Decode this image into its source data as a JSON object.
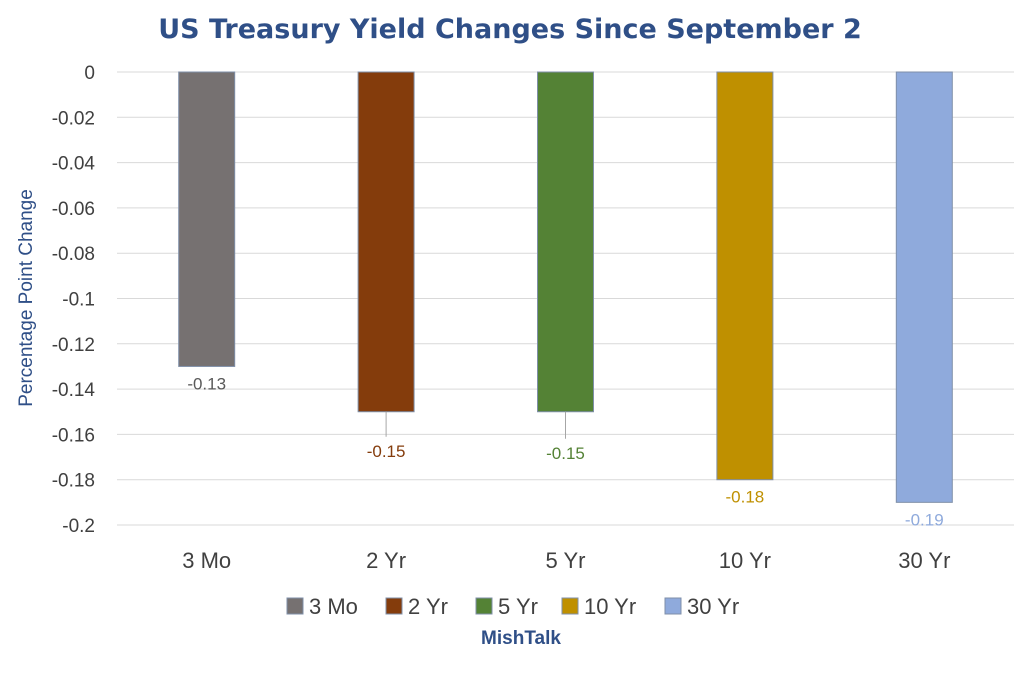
{
  "chart_data": {
    "type": "bar",
    "title": "US Treasury Yield Changes Since September 2",
    "xlabel": "",
    "ylabel": "Percentage Point Change",
    "categories": [
      "3 Mo",
      "2 Yr",
      "5 Yr",
      "10 Yr",
      "30 Yr"
    ],
    "values": [
      -0.13,
      -0.15,
      -0.15,
      -0.18,
      -0.19
    ],
    "data_labels": [
      "-0.13",
      "-0.15",
      "-0.15",
      "-0.18",
      "-0.19"
    ],
    "colors": [
      "#767171",
      "#843c0c",
      "#548235",
      "#bf9000",
      "#8faadc"
    ],
    "label_colors": [
      "#595959",
      "#843c0c",
      "#548235",
      "#bf9000",
      "#8faadc"
    ],
    "ylim": [
      -0.2,
      0
    ],
    "yticks": [
      0,
      -0.02,
      -0.04,
      -0.06,
      -0.08,
      -0.1,
      -0.12,
      -0.14,
      -0.16,
      -0.18,
      -0.2
    ],
    "ytick_labels": [
      "0",
      "-0.02",
      "-0.04",
      "-0.06",
      "-0.08",
      "-0.1",
      "-0.12",
      "-0.14",
      "-0.16",
      "-0.18",
      "-0.2"
    ],
    "grid": true,
    "legend": {
      "placement": "bottom",
      "entries": [
        "3 Mo",
        "2 Yr",
        "5 Yr",
        "10 Yr",
        "30 Yr"
      ]
    },
    "source": "MishTalk"
  }
}
